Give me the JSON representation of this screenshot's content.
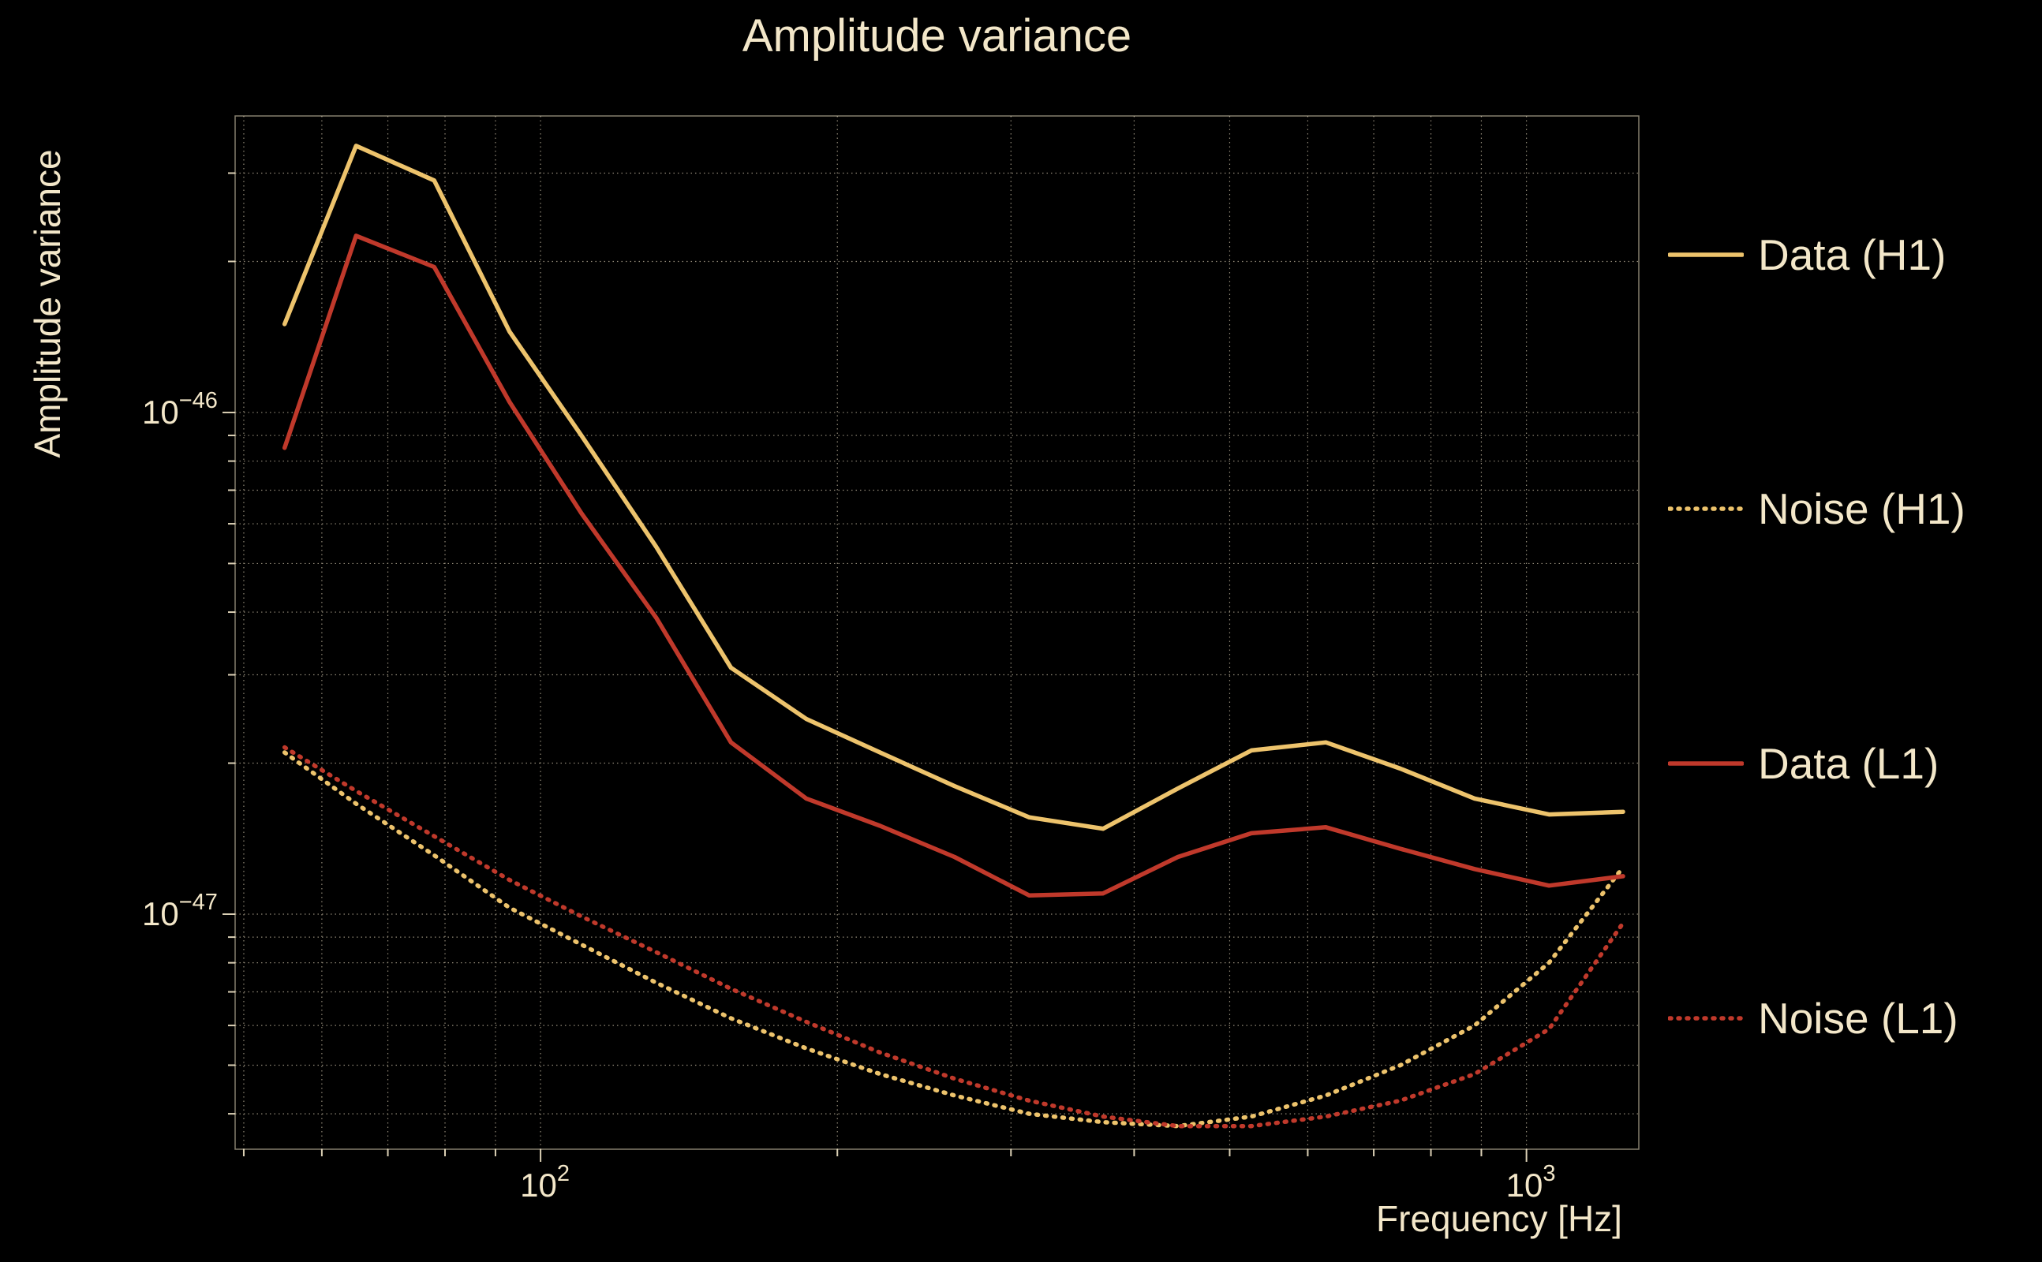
{
  "title": "Amplitude variance",
  "xlabel": "Frequency [Hz]",
  "ylabel": "Amplitude variance",
  "colors": {
    "background": "#000000",
    "text": "#f3e7c9",
    "grid": "#f3e7c9",
    "h1": "#edc36c",
    "l1": "#c0392b"
  },
  "chart_data": {
    "type": "line",
    "title": "Amplitude variance",
    "xlabel": "Frequency [Hz]",
    "ylabel": "Amplitude variance",
    "xscale": "log",
    "yscale": "log",
    "xlim": [
      49,
      1300
    ],
    "ylim": [
      3.4e-48,
      3.9e-46
    ],
    "xticks": [
      100,
      1000
    ],
    "yticks": [
      1e-46,
      1e-47
    ],
    "grid": true,
    "legend_position": "right",
    "x": [
      55,
      65,
      78,
      93,
      110,
      131,
      156,
      186,
      221,
      263,
      313,
      372,
      443,
      526,
      626,
      745,
      886,
      1054,
      1253
    ],
    "series": [
      {
        "name": "Data (H1)",
        "color": "#edc36c",
        "style": "solid",
        "values": [
          1.5e-46,
          3.4e-46,
          2.9e-46,
          1.45e-46,
          9e-47,
          5.4e-47,
          3.1e-47,
          2.45e-47,
          2.1e-47,
          1.8e-47,
          1.56e-47,
          1.48e-47,
          1.78e-47,
          2.12e-47,
          2.2e-47,
          1.95e-47,
          1.7e-47,
          1.58e-47,
          1.6e-47
        ]
      },
      {
        "name": "Noise (H1)",
        "color": "#edc36c",
        "style": "dotted",
        "values": [
          2.1e-47,
          1.66e-47,
          1.31e-47,
          1.03e-47,
          8.7e-48,
          7.3e-48,
          6.2e-48,
          5.4e-48,
          4.8e-48,
          4.35e-48,
          4e-48,
          3.85e-48,
          3.78e-48,
          3.95e-48,
          4.35e-48,
          5e-48,
          6e-48,
          8e-48,
          1.24e-47
        ]
      },
      {
        "name": "Data (L1)",
        "color": "#c0392b",
        "style": "solid",
        "values": [
          8.5e-47,
          2.25e-46,
          1.95e-46,
          1.05e-46,
          6.3e-47,
          3.9e-47,
          2.2e-47,
          1.7e-47,
          1.5e-47,
          1.3e-47,
          1.09e-47,
          1.1e-47,
          1.3e-47,
          1.45e-47,
          1.49e-47,
          1.35e-47,
          1.23e-47,
          1.14e-47,
          1.19e-47
        ]
      },
      {
        "name": "Noise (L1)",
        "color": "#c0392b",
        "style": "dotted",
        "values": [
          2.15e-47,
          1.76e-47,
          1.43e-47,
          1.17e-47,
          9.9e-48,
          8.4e-48,
          7.1e-48,
          6.1e-48,
          5.3e-48,
          4.7e-48,
          4.25e-48,
          3.95e-48,
          3.78e-48,
          3.78e-48,
          3.95e-48,
          4.25e-48,
          4.8e-48,
          5.9e-48,
          9.6e-48
        ]
      }
    ]
  }
}
